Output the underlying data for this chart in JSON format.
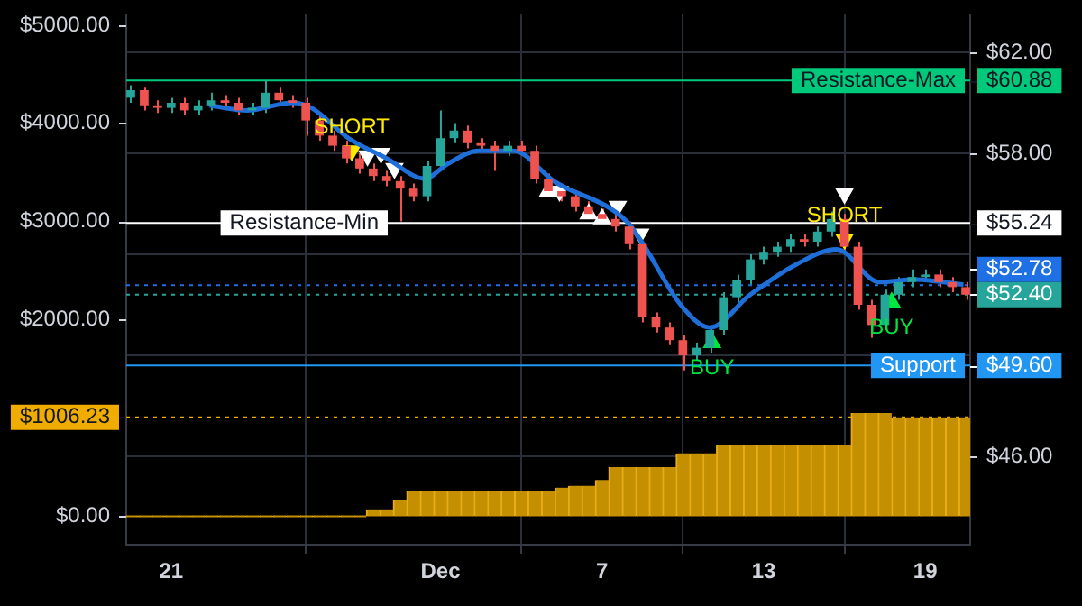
{
  "chart_data": {
    "type": "candlestick",
    "x": [
      "--11-19T12:00",
      "--11-20T00:00",
      "--11-20T12:00",
      "--11-21T00:00",
      "--11-21T12:00",
      "--11-22T00:00",
      "--11-22T12:00",
      "--11-23T00:00",
      "--11-23T12:00",
      "--11-24T00:00",
      "--11-24T12:00",
      "--11-25T00:00",
      "--11-25T12:00",
      "--11-26T00:00",
      "--11-26T12:00",
      "--11-27T00:00",
      "--11-27T12:00",
      "--11-28T00:00",
      "--11-28T12:00",
      "--11-29T00:00",
      "--11-29T12:00",
      "--11-30T00:00",
      "--11-30T12:00",
      "--12-01T00:00",
      "--12-01T12:00",
      "--12-02T00:00",
      "--12-02T12:00",
      "--12-03T00:00",
      "--12-03T12:00",
      "--12-04T00:00",
      "--12-04T12:00",
      "--12-05T00:00",
      "--12-05T12:00",
      "--12-06T00:00",
      "--12-06T12:00",
      "--12-07T00:00",
      "--12-07T12:00",
      "--12-08T00:00",
      "--12-08T12:00",
      "--12-09T00:00",
      "--12-09T12:00",
      "--12-10T00:00",
      "--12-10T12:00",
      "--12-11T00:00",
      "--12-11T12:00",
      "--12-12T00:00",
      "--12-12T12:00",
      "--12-13T00:00",
      "--12-13T12:00",
      "--12-14T00:00",
      "--12-14T12:00",
      "--12-15T00:00",
      "--12-15T12:00",
      "--12-16T00:00",
      "--12-16T12:00",
      "--12-17T00:00",
      "--12-17T12:00",
      "--12-18T00:00",
      "--12-18T12:00",
      "--12-19T00:00",
      "--12-19T12:00",
      "--12-20T00:00",
      "--12-20T12:00"
    ],
    "series": [
      {
        "axis": "y2",
        "ohlc": [
          [
            60.2,
            60.7,
            60.0,
            60.5
          ],
          [
            60.5,
            60.6,
            59.7,
            59.9
          ],
          [
            59.9,
            60.1,
            59.6,
            59.8
          ],
          [
            59.8,
            60.2,
            59.6,
            60.0
          ],
          [
            60.0,
            60.2,
            59.5,
            59.7
          ],
          [
            59.7,
            60.1,
            59.5,
            59.9
          ],
          [
            59.9,
            60.4,
            59.7,
            60.1
          ],
          [
            60.1,
            60.3,
            59.8,
            60.0
          ],
          [
            60.0,
            60.2,
            59.5,
            59.7
          ],
          [
            59.7,
            60.0,
            59.5,
            59.8
          ],
          [
            59.8,
            60.88,
            59.6,
            60.4
          ],
          [
            60.4,
            60.6,
            59.9,
            60.1
          ],
          [
            60.1,
            60.3,
            59.8,
            60.0
          ],
          [
            60.0,
            60.2,
            58.7,
            59.3
          ],
          [
            59.3,
            59.5,
            58.5,
            58.7
          ],
          [
            58.7,
            58.9,
            58.1,
            58.3
          ],
          [
            58.3,
            58.5,
            57.6,
            57.8
          ],
          [
            57.8,
            58.0,
            57.2,
            57.4
          ],
          [
            57.4,
            57.6,
            56.9,
            57.1
          ],
          [
            57.1,
            57.3,
            56.7,
            56.9
          ],
          [
            56.9,
            57.1,
            55.3,
            56.6
          ],
          [
            56.6,
            56.8,
            56.1,
            56.3
          ],
          [
            56.3,
            57.7,
            56.1,
            57.5
          ],
          [
            57.5,
            59.7,
            57.3,
            58.6
          ],
          [
            58.6,
            59.2,
            58.4,
            58.9
          ],
          [
            58.9,
            59.1,
            58.2,
            58.4
          ],
          [
            58.4,
            58.6,
            58.1,
            58.3
          ],
          [
            58.3,
            58.5,
            57.3,
            58.1
          ],
          [
            58.1,
            58.5,
            57.9,
            58.3
          ],
          [
            58.3,
            58.5,
            57.9,
            58.1
          ],
          [
            58.1,
            58.3,
            56.8,
            57.0
          ],
          [
            57.0,
            57.2,
            56.3,
            56.5
          ],
          [
            56.5,
            56.7,
            56.1,
            56.3
          ],
          [
            56.3,
            56.5,
            55.7,
            55.9
          ],
          [
            55.9,
            56.1,
            55.4,
            55.6
          ],
          [
            55.6,
            55.8,
            55.2,
            55.4
          ],
          [
            55.4,
            55.6,
            54.9,
            55.1
          ],
          [
            55.1,
            55.3,
            54.2,
            54.4
          ],
          [
            54.4,
            54.5,
            51.3,
            51.5
          ],
          [
            51.5,
            51.7,
            50.9,
            51.1
          ],
          [
            51.1,
            51.3,
            50.4,
            50.6
          ],
          [
            50.6,
            50.8,
            49.4,
            50.0
          ],
          [
            50.0,
            50.5,
            49.8,
            50.3
          ],
          [
            50.3,
            51.2,
            50.1,
            51.0
          ],
          [
            51.0,
            52.5,
            50.8,
            52.3
          ],
          [
            52.3,
            53.2,
            52.1,
            53.0
          ],
          [
            53.0,
            54.0,
            52.8,
            53.8
          ],
          [
            53.8,
            54.3,
            53.6,
            54.1
          ],
          [
            54.1,
            54.5,
            53.9,
            54.3
          ],
          [
            54.3,
            54.8,
            54.1,
            54.6
          ],
          [
            54.6,
            54.8,
            54.3,
            54.5
          ],
          [
            54.5,
            55.1,
            54.3,
            54.9
          ],
          [
            54.9,
            55.7,
            54.7,
            55.4
          ],
          [
            55.4,
            55.6,
            54.1,
            54.3
          ],
          [
            54.3,
            54.5,
            51.8,
            52.0
          ],
          [
            52.0,
            52.2,
            50.7,
            51.2
          ],
          [
            51.2,
            52.6,
            51.0,
            52.4
          ],
          [
            52.4,
            53.1,
            52.2,
            52.9
          ],
          [
            52.9,
            53.4,
            52.7,
            53.1
          ],
          [
            53.1,
            53.4,
            52.9,
            53.2
          ],
          [
            53.2,
            53.4,
            52.7,
            52.9
          ],
          [
            52.9,
            53.1,
            52.5,
            52.7
          ],
          [
            52.7,
            52.9,
            52.2,
            52.4
          ]
        ],
        "colors": [
          "#26a69a",
          "#ef5350",
          "#ef5350",
          "#26a69a",
          "#ef5350",
          "#26a69a",
          "#26a69a",
          "#ef5350",
          "#ef5350",
          "#26a69a",
          "#26a69a",
          "#ef5350",
          "#ef5350",
          "#ef5350",
          "#ef5350",
          "#ef5350",
          "#ef5350",
          "#ef5350",
          "#ef5350",
          "#ef5350",
          "#ef5350",
          "#ef5350",
          "#26a69a",
          "#26a69a",
          "#26a69a",
          "#ef5350",
          "#ef5350",
          "#ef5350",
          "#26a69a",
          "#ef5350",
          "#ef5350",
          "#ef5350",
          "#ef5350",
          "#ef5350",
          "#ef5350",
          "#ef5350",
          "#ef5350",
          "#ef5350",
          "#ef5350",
          "#ef5350",
          "#ef5350",
          "#ef5350",
          "#26a69a",
          "#26a69a",
          "#26a69a",
          "#26a69a",
          "#26a69a",
          "#26a69a",
          "#26a69a",
          "#26a69a",
          "#ef5350",
          "#26a69a",
          "#26a69a",
          "#ef5350",
          "#ef5350",
          "#ef5350",
          "#26a69a",
          "#26a69a",
          "#26a69a",
          "#26a69a",
          "#ef5350",
          "#ef5350",
          "#ef5350"
        ]
      },
      {
        "type": "line",
        "axis": "y2",
        "color": "#1e6fd9",
        "x": [
          "--11-22T10:00",
          "--11-23T19:00",
          "--11-25T12:00",
          "--11-26T05:00",
          "--11-27T14:00",
          "--11-29T00:00",
          "--11-30T10:00",
          "--12-01T07:00",
          "--12-02T10:00",
          "--12-03T17:00",
          "--12-05T05:00",
          "--12-07T22:00",
          "--12-08T14:00",
          "--12-09T22:00",
          "--12-11T00:00",
          "--12-12T12:00",
          "--12-14T05:00",
          "--12-15T17:00",
          "--12-17T07:00",
          "--12-18T14:00",
          "--12-20T10:00"
        ],
        "values": [
          59.9,
          59.7,
          60.0,
          59.8,
          58.6,
          57.8,
          57.0,
          57.6,
          58.1,
          58.1,
          56.9,
          55.3,
          54.3,
          52.0,
          51.1,
          52.4,
          53.6,
          54.2,
          52.9,
          53.0,
          52.8
        ]
      },
      {
        "type": "bar",
        "axis": "y",
        "color": "#c48f00",
        "values": [
          0,
          0,
          0,
          0,
          0,
          0,
          0,
          0,
          0,
          0,
          0,
          0,
          0,
          0,
          0,
          0,
          0,
          0,
          70,
          70,
          170,
          260,
          260,
          260,
          260,
          260,
          260,
          260,
          260,
          260,
          260,
          260,
          290,
          310,
          310,
          370,
          500,
          500,
          500,
          500,
          500,
          640,
          640,
          640,
          730,
          730,
          730,
          730,
          730,
          730,
          730,
          730,
          730,
          730,
          1050,
          1050,
          1050,
          1006.23,
          1006.23,
          1006.23,
          1006.23,
          1006.23,
          1006.23
        ]
      },
      {
        "type": "scatter",
        "axis": "y2",
        "color": "#ffffff",
        "marker": "triangle",
        "x": [
          "--11-28T07:00",
          "--11-28T19:00",
          "--11-29T07:00",
          "--12-05T00:00",
          "--12-05T10:00",
          "--12-06T12:00",
          "--12-07T00:00",
          "--12-07T14:00",
          "--12-08T10:00",
          "--12-16T00:00"
        ],
        "values": [
          57.9,
          58.0,
          57.4,
          56.5,
          56.5,
          55.6,
          55.4,
          55.9,
          54.8,
          56.4
        ]
      },
      {
        "type": "scatter",
        "axis": "y2",
        "color": "#ffeb00",
        "marker": "triangle",
        "x": [
          "--11-27T17:00",
          "--12-16T00:00"
        ],
        "values": [
          58.1,
          54.6
        ],
        "value_labels": [
          "SHORT",
          "SHORT"
        ]
      },
      {
        "type": "scatter",
        "axis": "y2",
        "color": "#00e640",
        "marker": "triangle",
        "x": [
          "--12-11T02:00",
          "--12-17T18:00"
        ],
        "values": [
          50.5,
          52.1
        ],
        "value_labels": [
          "BUY",
          "BUY"
        ]
      }
    ],
    "xlim": [
      "--11-19T08:00",
      "--12-20T16:00"
    ],
    "xticks": [
      {
        "value": "--11-21",
        "label": "21"
      },
      {
        "value": "--12-01",
        "label": "Dec"
      },
      {
        "value": "--12-07",
        "label": "7"
      },
      {
        "value": "--12-13",
        "label": "13"
      },
      {
        "value": "--12-19",
        "label": "19"
      }
    ],
    "ylim": [
      -290,
      5110
    ],
    "yticks": [
      {
        "value": 5000,
        "label": "$5000.00"
      },
      {
        "value": 4000,
        "label": "$4000.00"
      },
      {
        "value": 3000,
        "label": "$3000.00"
      },
      {
        "value": 2000,
        "label": "$2000.00"
      },
      {
        "value": 0,
        "label": "$0.00"
      }
    ],
    "y2lim": [
      42.5,
      63.5
    ],
    "y2ticks": [
      {
        "value": 62,
        "label": "$62.00"
      },
      {
        "value": 60.88,
        "label": "$60.88"
      },
      {
        "value": 58,
        "label": "$58.00"
      },
      {
        "value": 55.24,
        "label": "$55.24"
      },
      {
        "value": 54,
        "label": null
      },
      {
        "value": 50,
        "label": null
      },
      {
        "value": 49.6,
        "label": "$49.60"
      },
      {
        "value": 46,
        "label": "$46.00"
      }
    ],
    "ref_lines": [
      {
        "axis": "y2",
        "value": 60.88,
        "label": "Resistance-Max",
        "color": "#00c97b"
      },
      {
        "axis": "y2",
        "value": 55.24,
        "label": "Resistance-Min",
        "color": "#ffffff"
      },
      {
        "axis": "y2",
        "value": 52.78,
        "label": "$52.78",
        "color": "#1f6fe5",
        "line_style": "dotted"
      },
      {
        "axis": "y2",
        "value": 52.4,
        "label": "$52.40",
        "color": "#26a69a",
        "line_style": "dotted"
      },
      {
        "axis": "y2",
        "value": 49.6,
        "label": "Support",
        "color": "#2196f3"
      },
      {
        "axis": "y",
        "value": 1006.23,
        "label": "$1006.23",
        "color": "#f0ad00",
        "line_style": "dotted"
      }
    ],
    "grid": true
  }
}
